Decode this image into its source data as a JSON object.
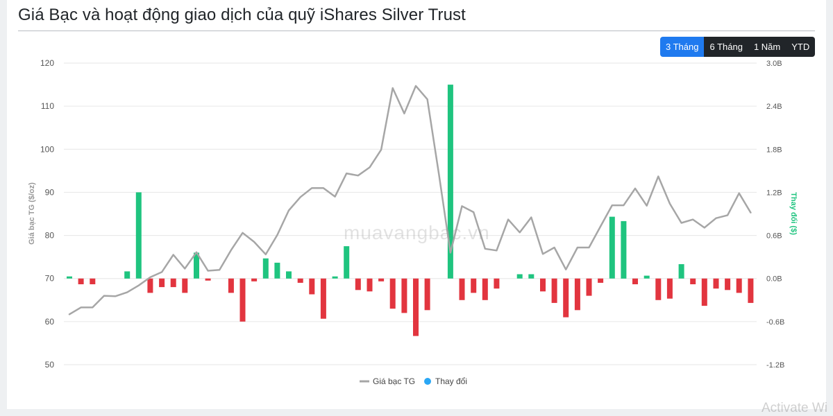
{
  "page": {
    "title": "Giá Bạc và hoạt động giao dịch của quỹ iShares Silver Trust",
    "watermark": "muavangbac.vn",
    "os_overlay": "Activate Wi"
  },
  "range_buttons": [
    {
      "label": "3 Tháng",
      "active": true
    },
    {
      "label": "6 Tháng",
      "active": false
    },
    {
      "label": "1 Năm",
      "active": false
    },
    {
      "label": "YTD",
      "active": false
    }
  ],
  "colors": {
    "price_line": "#a6a6a6",
    "positive_bar": "#1fc47f",
    "negative_bar": "#e2353f",
    "legend_dot": "#2aa7f5",
    "active_button": "#1f7aef",
    "button": "#212529"
  },
  "chart_data": {
    "type": "bar+line",
    "y_left": {
      "label": "Giá bạc TG ($/oz)",
      "ylim": [
        50,
        120
      ],
      "ticks": [
        "50",
        "60",
        "70",
        "80",
        "90",
        "100",
        "110",
        "120"
      ]
    },
    "y_right": {
      "label": "Thay đổi ($)",
      "ylim": [
        -1.2,
        3.0
      ],
      "ticks": [
        "-1.2B",
        "-0.6B",
        "0.0B",
        "0.6B",
        "1.2B",
        "1.8B",
        "2.4B",
        "3.0B"
      ]
    },
    "grid": true,
    "legend": {
      "position": "bottom-center",
      "items": [
        "Giá bạc TG",
        "Thay đổi"
      ]
    },
    "series": [
      {
        "name": "Giá bạc TG",
        "type": "line",
        "axis": "left",
        "values": [
          61.7,
          63.3,
          63.3,
          66,
          65.9,
          66.8,
          68.4,
          70.3,
          71.5,
          75.5,
          72.3,
          76.1,
          71.8,
          72,
          76.6,
          80.6,
          78.5,
          75.6,
          80.1,
          85.8,
          88.9,
          91,
          91,
          89,
          94.4,
          93.9,
          95.8,
          99.9,
          114.2,
          108.3,
          114.7,
          111.6,
          94.2,
          76,
          86.8,
          85.4,
          76.9,
          76.5,
          83.7,
          80.7,
          84.2,
          75.7,
          77.2,
          72.1,
          77.2,
          77.2,
          82.1,
          87,
          87,
          90.9,
          86.9,
          93.7,
          87.4,
          82.9,
          83.7,
          81.8,
          84,
          84.7,
          89.8,
          85.3
        ]
      },
      {
        "name": "Thay đổi",
        "type": "bar",
        "axis": "right",
        "values": [
          0.02,
          -0.08,
          -0.08,
          0,
          0,
          0.1,
          1.2,
          -0.2,
          -0.12,
          -0.12,
          -0.2,
          0.36,
          -0.02,
          0,
          -0.2,
          -0.6,
          -0.04,
          0.28,
          0.22,
          0.1,
          -0.06,
          -0.22,
          -0.56,
          0.02,
          0.45,
          -0.16,
          -0.18,
          -0.04,
          -0.42,
          -0.48,
          -0.8,
          -0.44,
          0,
          2.7,
          -0.3,
          -0.2,
          -0.3,
          -0.14,
          0,
          0.06,
          0.06,
          -0.18,
          -0.34,
          -0.54,
          -0.44,
          -0.24,
          -0.06,
          0.86,
          0.8,
          -0.08,
          0.04,
          -0.3,
          -0.28,
          0.2,
          -0.08,
          -0.38,
          -0.14,
          -0.16,
          -0.2,
          -0.34
        ]
      }
    ]
  }
}
